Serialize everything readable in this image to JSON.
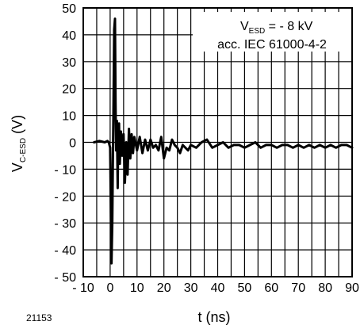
{
  "figure_id": "21153",
  "chart_data": {
    "type": "line",
    "title": "",
    "xlabel": "t (ns)",
    "ylabel_main": "V",
    "ylabel_sub": "C-ESD",
    "ylabel_unit": " (V)",
    "xlim": [
      -10,
      90
    ],
    "ylim": [
      -50,
      50
    ],
    "x_ticks": [
      -10,
      0,
      10,
      20,
      30,
      40,
      50,
      60,
      70,
      80,
      90
    ],
    "x_tick_labels": [
      "- 10",
      "0",
      "10",
      "20",
      "30",
      "40",
      "50",
      "60",
      "70",
      "80",
      "90"
    ],
    "y_ticks": [
      -50,
      -40,
      -30,
      -20,
      -10,
      0,
      10,
      20,
      30,
      40,
      50
    ],
    "y_tick_labels": [
      "- 50",
      "- 40",
      "- 30",
      "- 20",
      "- 10",
      "0",
      "10",
      "20",
      "30",
      "40",
      "50"
    ],
    "grid": true,
    "annotations": {
      "line1_main": "V",
      "line1_sub": "ESD",
      "line1_rest": " = - 8 kV",
      "line2": "acc. IEC 61000-4-2"
    },
    "series": [
      {
        "color": "#000000",
        "x": [
          -6,
          -4,
          -2,
          -1,
          -0.5,
          0,
          0.3,
          0.5,
          0.8,
          1,
          1.2,
          1.5,
          1.8,
          2,
          2.2,
          2.5,
          2.8,
          3,
          3.3,
          3.6,
          4,
          4.5,
          5,
          5.5,
          6,
          6.5,
          7,
          7.5,
          8,
          8.5,
          9,
          10,
          11,
          12,
          13,
          14,
          15,
          16,
          17,
          18,
          19,
          20,
          21,
          22,
          23,
          24,
          25,
          26,
          27,
          28,
          29,
          30,
          32,
          34,
          36,
          38,
          40,
          42,
          44,
          46,
          48,
          50,
          52,
          54,
          56,
          58,
          60,
          62,
          64,
          66,
          68,
          70,
          72,
          74,
          76,
          78,
          80,
          82,
          84,
          86,
          88,
          90
        ],
        "y": [
          0,
          0.5,
          0,
          0.5,
          0,
          -2,
          -28,
          -45,
          -30,
          -8,
          10,
          42,
          46,
          15,
          -3,
          8,
          -17,
          2,
          7,
          -8,
          4,
          -5,
          3,
          -15,
          0,
          -12,
          5,
          -6,
          3,
          -4,
          2,
          -3,
          2,
          -4,
          1,
          -3,
          1,
          -2,
          -1,
          -3,
          2,
          -6,
          -2,
          -3,
          1,
          -1,
          -2,
          -4,
          -1,
          -2,
          -3,
          -1,
          -2,
          0,
          1,
          -2,
          -1,
          0,
          -2,
          -1,
          -1,
          -2,
          -1,
          0,
          -2,
          -1,
          -1,
          -2,
          -1,
          -1,
          -2,
          -1,
          -2,
          -1,
          -2,
          -1,
          -2,
          -1,
          -2,
          -1,
          -1,
          -2
        ]
      }
    ]
  }
}
